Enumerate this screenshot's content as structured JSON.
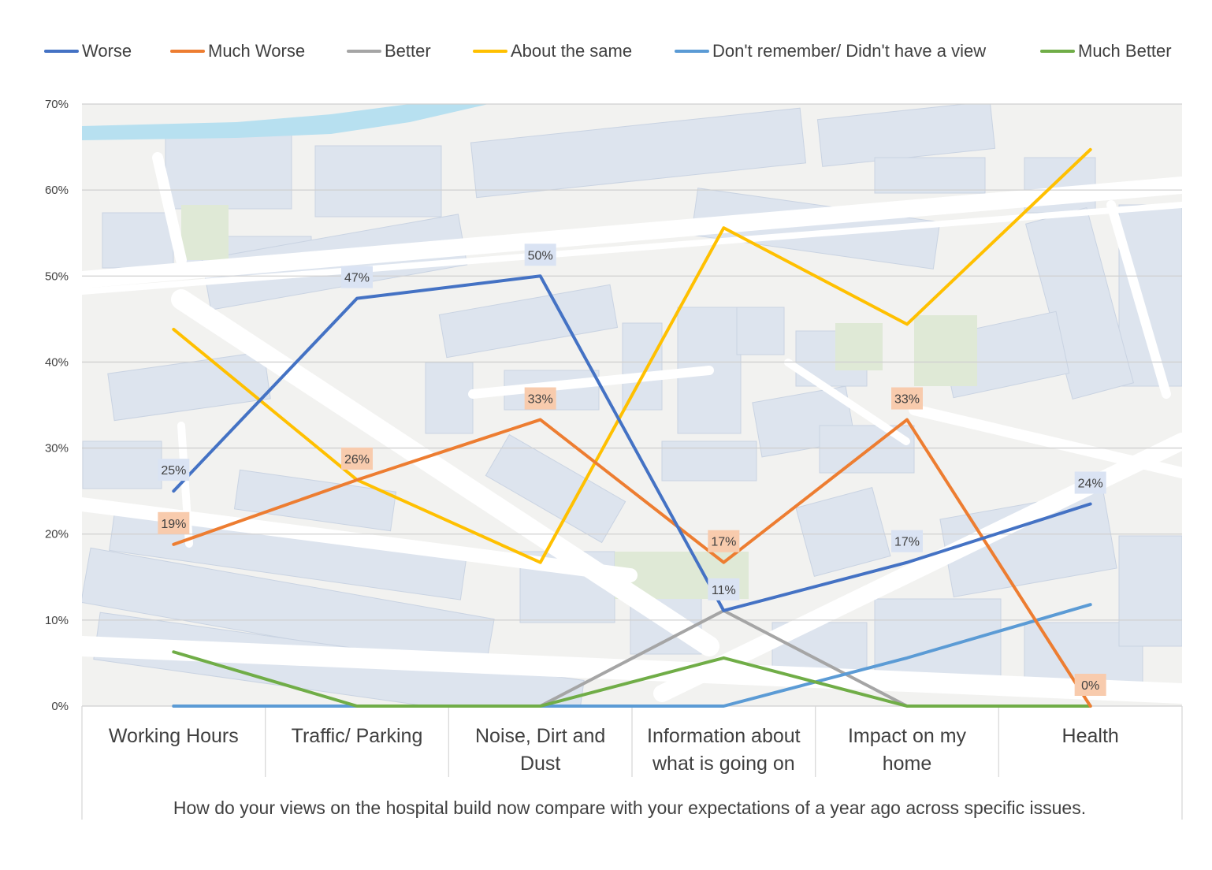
{
  "chart_data": {
    "type": "line",
    "xlabel": "How  do your views on the hospital  build now compare with your expectations of a year ago across specific issues.",
    "ylim": [
      0,
      70
    ],
    "yticks": [
      "0%",
      "10%",
      "20%",
      "30%",
      "40%",
      "50%",
      "60%",
      "70%"
    ],
    "categories": [
      [
        "Working Hours"
      ],
      [
        "Traffic/ Parking"
      ],
      [
        "Noise, Dirt and",
        "Dust"
      ],
      [
        "Information about",
        "what is going on"
      ],
      [
        "Impact on my",
        "home"
      ],
      [
        "Health"
      ]
    ],
    "grid": true,
    "legend_position": "top",
    "background": "street-map",
    "series": [
      {
        "name": "Worse",
        "color": "#4472C4",
        "values": [
          25,
          47.4,
          50,
          11.1,
          16.7,
          23.5
        ],
        "labels": [
          "25%",
          "47%",
          "50%",
          "11%",
          "17%",
          "24%"
        ],
        "label_bg": "#DAE3F3"
      },
      {
        "name": "Much Worse",
        "color": "#ED7D31",
        "values": [
          18.8,
          26.3,
          33.3,
          16.7,
          33.3,
          0
        ],
        "labels": [
          "19%",
          "26%",
          "33%",
          "17%",
          "33%",
          "0%"
        ],
        "label_bg": "#F8CBAD"
      },
      {
        "name": "Better",
        "color": "#A5A5A5",
        "values": [
          0,
          0,
          0,
          11.1,
          0,
          0
        ]
      },
      {
        "name": "About the same",
        "color": "#FFC000",
        "values": [
          43.8,
          26.3,
          16.7,
          55.6,
          44.4,
          64.7
        ]
      },
      {
        "name": "Don't remember/ Didn't have a view",
        "color": "#5B9BD5",
        "values": [
          0,
          0,
          0,
          0,
          5.6,
          11.8
        ]
      },
      {
        "name": "Much Better",
        "color": "#70AD47",
        "values": [
          6.3,
          0,
          0,
          5.6,
          0,
          0
        ]
      }
    ]
  }
}
